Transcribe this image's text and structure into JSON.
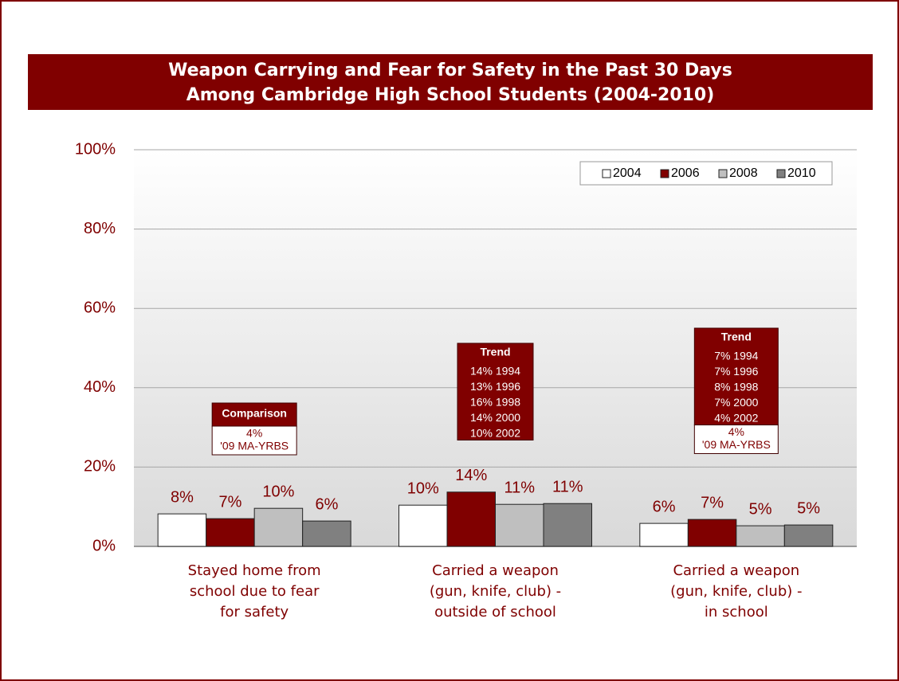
{
  "chart_data": {
    "type": "bar",
    "title": [
      "Weapon Carrying and Fear for Safety in the Past 30 Days",
      "Among Cambridge High School Students (2004-2010)"
    ],
    "categories": [
      [
        "Stayed home from",
        "school due to fear",
        "for safety"
      ],
      [
        "Carried a weapon",
        "(gun, knife, club) -",
        "outside of school"
      ],
      [
        "Carried a weapon",
        "(gun, knife, club) -",
        "in school"
      ]
    ],
    "series": [
      {
        "name": "2004",
        "color": "#ffffff",
        "values": [
          8.2,
          10.4,
          5.8
        ],
        "value_labels": [
          "8%",
          "10%",
          "6%"
        ]
      },
      {
        "name": "2006",
        "color": "#800000",
        "values": [
          7.0,
          13.7,
          6.8
        ],
        "value_labels": [
          "7%",
          "14%",
          "7%"
        ]
      },
      {
        "name": "2008",
        "color": "#bfbfbf",
        "values": [
          9.6,
          10.6,
          5.2
        ],
        "value_labels": [
          "10%",
          "11%",
          "5%"
        ]
      },
      {
        "name": "2010",
        "color": "#808080",
        "values": [
          6.4,
          10.8,
          5.4
        ],
        "value_labels": [
          "6%",
          "11%",
          "5%"
        ]
      }
    ],
    "ylim": [
      0,
      100
    ],
    "yticks": [
      {
        "value": 0,
        "label": "0%"
      },
      {
        "value": 20,
        "label": "20%"
      },
      {
        "value": 40,
        "label": "40%"
      },
      {
        "value": 60,
        "label": "60%"
      },
      {
        "value": 80,
        "label": "80%"
      },
      {
        "value": 100,
        "label": "100%"
      }
    ],
    "grid": true,
    "legend": "top-right",
    "annotations": [
      {
        "title": "Comparison",
        "lines": [],
        "note": [
          "4%",
          "'09 MA-YRBS"
        ]
      },
      {
        "title": "Trend",
        "lines": [
          "14% 1994",
          "13% 1996",
          "16% 1998",
          "14% 2000",
          "10% 2002"
        ],
        "note": []
      },
      {
        "title": "Trend",
        "lines": [
          "7% 1994",
          "7% 1996",
          "8% 1998",
          "7% 2000",
          "4% 2002"
        ],
        "note": [
          "4%",
          "'09 MA-YRBS"
        ]
      }
    ]
  }
}
